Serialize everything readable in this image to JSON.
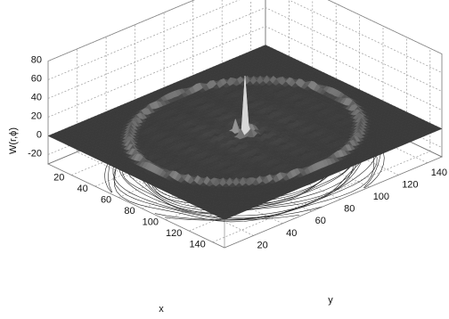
{
  "chart_data": {
    "type": "surface",
    "title": "",
    "xlabel": "x",
    "ylabel": "y",
    "zlabel": "W(r,ϕ)",
    "x_ticks": [
      20,
      40,
      60,
      80,
      100,
      120,
      140
    ],
    "y_ticks": [
      20,
      40,
      60,
      80,
      100,
      120,
      140
    ],
    "z_ticks": [
      -20,
      0,
      20,
      40,
      60,
      80
    ],
    "xlim": [
      0,
      150
    ],
    "ylim": [
      0,
      150
    ],
    "zlim": [
      -30,
      80
    ],
    "grid": true,
    "surface": {
      "base_level": 0,
      "ring_radius": 62,
      "ring_height": 6,
      "central_peak": 62,
      "side_peaks": [
        {
          "x": 74,
          "y": 79,
          "z": 25
        },
        {
          "x": 70,
          "y": 72,
          "z": 15
        },
        {
          "x": 80,
          "y": 76,
          "z": 12
        },
        {
          "x": 77,
          "y": 70,
          "z": 10
        }
      ],
      "contour_projection_level": -30
    }
  }
}
